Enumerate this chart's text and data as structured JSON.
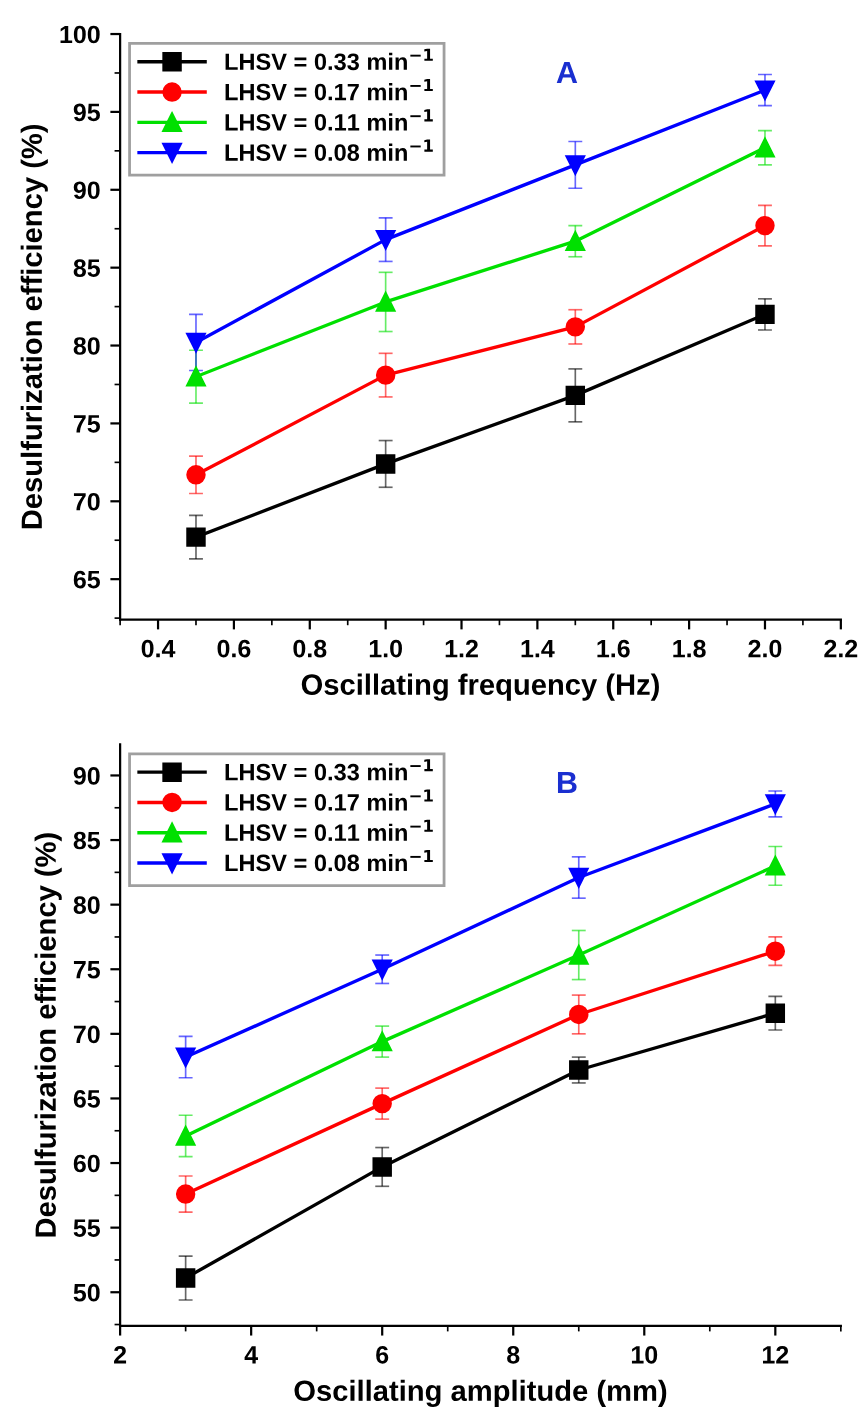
{
  "chart_data": [
    {
      "type": "line",
      "xlabel": "Oscillating frequency (Hz)",
      "ylabel": "Desulfurization efficiency (%)",
      "annotations": [
        "A"
      ],
      "x": [
        0.5,
        1.0,
        1.5,
        2.0
      ],
      "xlim": [
        0.3,
        2.2
      ],
      "xticks": [
        0.4,
        0.6,
        0.8,
        {
          "value": 1,
          "label": "1.0"
        },
        1.2,
        1.4,
        1.6,
        1.8,
        {
          "value": 2,
          "label": "2.0"
        },
        2.2
      ],
      "ylim": [
        62.4,
        100
      ],
      "yticks": [
        65,
        70,
        75,
        80,
        85,
        90,
        95,
        100
      ],
      "grid": false,
      "legend": "top left",
      "series": [
        {
          "name": "LHSV = 0.33 min$^{−1}$",
          "color": "#000000",
          "marker": "square",
          "values": [
            67.7,
            72.4,
            76.8,
            82.0
          ],
          "errors": [
            1.4,
            1.5,
            1.7,
            1.0
          ]
        },
        {
          "name": "LHSV = 0.17 min$^{−1}$",
          "color": "#ff0000",
          "marker": "circle",
          "values": [
            71.7,
            78.1,
            81.2,
            87.7
          ],
          "errors": [
            1.2,
            1.4,
            1.1,
            1.3
          ]
        },
        {
          "name": "LHSV = 0.11 min$^{−1}$",
          "color": "#00e000",
          "marker": "triangle",
          "values": [
            78.0,
            82.8,
            86.7,
            92.7
          ],
          "errors": [
            1.7,
            1.9,
            1.0,
            1.1
          ]
        },
        {
          "name": "LHSV = 0.08 min$^{−1}$",
          "color": "#0000ff",
          "marker": "triangle_down",
          "values": [
            80.2,
            86.8,
            91.6,
            96.4
          ],
          "errors": [
            1.8,
            1.4,
            1.5,
            1.0
          ]
        }
      ]
    },
    {
      "type": "line",
      "xlabel": "Oscillating amplitude (mm)",
      "ylabel": "Desulfurization efficiency (%)",
      "annotations": [
        "B"
      ],
      "x": [
        3,
        6,
        9,
        12
      ],
      "xlim": [
        2,
        13
      ],
      "xticks": [
        2,
        4,
        6,
        8,
        10,
        12
      ],
      "ylim": [
        47.4,
        92.4
      ],
      "yticks": [
        50,
        55,
        60,
        65,
        70,
        75,
        80,
        85,
        90
      ],
      "grid": false,
      "legend": "top left",
      "series": [
        {
          "name": "LHSV = 0.33 min$^{−1}$",
          "color": "#000000",
          "marker": "square",
          "values": [
            51.1,
            59.7,
            67.2,
            71.6
          ],
          "errors": [
            1.7,
            1.5,
            1.0,
            1.3
          ]
        },
        {
          "name": "LHSV = 0.17 min$^{−1}$",
          "color": "#ff0000",
          "marker": "circle",
          "values": [
            57.6,
            64.6,
            71.5,
            76.4
          ],
          "errors": [
            1.4,
            1.2,
            1.5,
            1.1
          ]
        },
        {
          "name": "LHSV = 0.11 min$^{−1}$",
          "color": "#00e000",
          "marker": "triangle",
          "values": [
            62.1,
            69.4,
            76.1,
            83.0
          ],
          "errors": [
            1.6,
            1.2,
            1.9,
            1.5
          ]
        },
        {
          "name": "LHSV = 0.08 min$^{−1}$",
          "color": "#0000ff",
          "marker": "triangle_down",
          "values": [
            68.2,
            75.0,
            82.1,
            87.8
          ],
          "errors": [
            1.6,
            1.1,
            1.6,
            1.0
          ]
        }
      ]
    }
  ]
}
